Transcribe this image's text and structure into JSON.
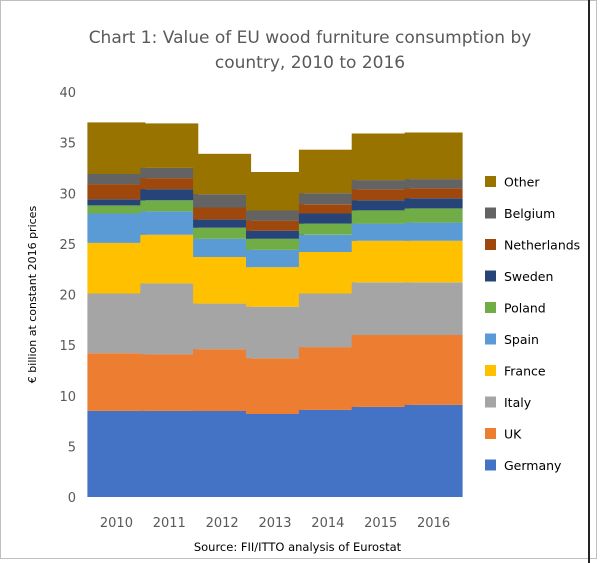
{
  "chart_data": {
    "type": "bar",
    "stacked": true,
    "title_line1": "Chart 1: Value of EU wood furniture consumption by",
    "title_line2": "country, 2010 to 2016",
    "ylabel": "€ billion at constant 2016 prices",
    "xlabel": "",
    "source": "Source: FII/ITTO analysis of Eurostat",
    "ylim": [
      0,
      40
    ],
    "yticks": [
      0,
      5,
      10,
      15,
      20,
      25,
      30,
      35,
      40
    ],
    "categories": [
      "2010",
      "2011",
      "2012",
      "2013",
      "2014",
      "2015",
      "2016"
    ],
    "grid": false,
    "legend_position": "right",
    "series": [
      {
        "name": "Germany",
        "color": "#4472c4",
        "values": [
          8.5,
          8.5,
          8.5,
          8.2,
          8.6,
          8.9,
          9.1
        ]
      },
      {
        "name": "UK",
        "color": "#ed7d31",
        "values": [
          5.7,
          5.6,
          6.1,
          5.5,
          6.2,
          7.1,
          6.9
        ]
      },
      {
        "name": "Italy",
        "color": "#a5a5a5",
        "values": [
          5.9,
          7.0,
          4.5,
          5.1,
          5.3,
          5.2,
          5.2
        ]
      },
      {
        "name": "France",
        "color": "#ffc000",
        "values": [
          5.0,
          4.8,
          4.6,
          3.9,
          4.1,
          4.1,
          4.1
        ]
      },
      {
        "name": "Spain",
        "color": "#5b9bd5",
        "values": [
          2.9,
          2.3,
          1.8,
          1.7,
          1.7,
          1.7,
          1.8
        ]
      },
      {
        "name": "Poland",
        "color": "#70ad47",
        "values": [
          0.8,
          1.1,
          1.1,
          1.1,
          1.1,
          1.3,
          1.4
        ]
      },
      {
        "name": "Sweden",
        "color": "#264478",
        "values": [
          0.6,
          1.1,
          0.8,
          0.8,
          1.0,
          1.0,
          1.0
        ]
      },
      {
        "name": "Netherlands",
        "color": "#9e480e",
        "values": [
          1.5,
          1.1,
          1.2,
          1.0,
          0.9,
          1.1,
          1.0
        ]
      },
      {
        "name": "Belgium",
        "color": "#636363",
        "values": [
          1.0,
          1.0,
          1.3,
          1.0,
          1.1,
          0.9,
          0.9
        ]
      },
      {
        "name": "Other",
        "color": "#997300",
        "values": [
          5.1,
          4.4,
          4.0,
          3.8,
          4.3,
          4.6,
          4.6
        ]
      }
    ]
  }
}
